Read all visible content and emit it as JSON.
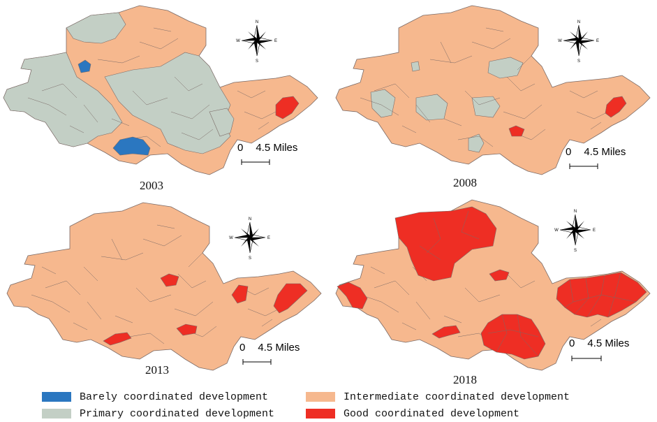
{
  "colors": {
    "barely": "#2b77c0",
    "primary": "#c3cfc5",
    "intermediate": "#f6b88e",
    "good": "#ee2e24",
    "border": "#7a6a66"
  },
  "compass": {
    "north": "N",
    "south": "S",
    "east": "E",
    "west": "W"
  },
  "scale": {
    "zero": "0",
    "distance": "4.5 Miles"
  },
  "panels": [
    {
      "year": "2003",
      "categories": {
        "barely": [
          "Northwest small county",
          "South-central county"
        ],
        "primary": [
          "Western counties",
          "Central-west counties",
          "North-central counties",
          "Southeast counties"
        ],
        "intermediate": [
          "Northern highlands",
          "Central counties",
          "Eastern counties",
          "Southwest counties"
        ],
        "good": [
          "Eastern coastal county"
        ]
      }
    },
    {
      "year": "2008",
      "categories": {
        "barely": [],
        "primary": [
          "Western county",
          "Central county",
          "North-central county",
          "Central-east county",
          "South-central county"
        ],
        "intermediate": [
          "Most counties"
        ],
        "good": [
          "Central-south county",
          "Eastern coastal county"
        ]
      }
    },
    {
      "year": "2013",
      "categories": {
        "barely": [],
        "primary": [],
        "intermediate": [
          "All other counties"
        ],
        "good": [
          "Central county",
          "Eastern county",
          "Eastern coastal counties",
          "Southwest county",
          "South-central county"
        ]
      }
    },
    {
      "year": "2018",
      "categories": {
        "barely": [],
        "primary": [],
        "intermediate": [
          "Remaining counties"
        ],
        "good": [
          "Northern large region",
          "Western county",
          "Central-east county",
          "Southern cluster",
          "Eastern coastal cluster",
          "Southwest county"
        ]
      }
    }
  ],
  "legend": [
    {
      "key": "barely",
      "label": "Barely coordinated development",
      "color": "#2b77c0"
    },
    {
      "key": "intermediate",
      "label": "Intermediate coordinated development",
      "color": "#f6b88e"
    },
    {
      "key": "primary",
      "label": "Primary coordinated development",
      "color": "#c3cfc5"
    },
    {
      "key": "good",
      "label": "Good coordinated development",
      "color": "#ee2e24"
    }
  ]
}
